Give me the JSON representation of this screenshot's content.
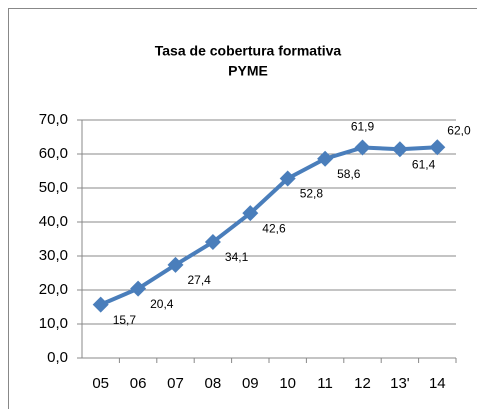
{
  "chart_data": {
    "type": "line",
    "title": "Tasa de cobertura formativa",
    "subtitle": "PYME",
    "categories": [
      "05",
      "06",
      "07",
      "08",
      "09",
      "10",
      "11",
      "12",
      "13'",
      "14"
    ],
    "series": [
      {
        "name": "Tasa de cobertura formativa PYME",
        "color": "#4a7ebb",
        "values": [
          15.7,
          20.4,
          27.4,
          34.1,
          42.6,
          52.8,
          58.6,
          61.9,
          61.4,
          62.0
        ],
        "value_labels": [
          "15,7",
          "20,4",
          "27,4",
          "34,1",
          "42,6",
          "52,8",
          "58,6",
          "61,9",
          "61,4",
          "62,0"
        ]
      }
    ],
    "ylim": [
      0,
      70
    ],
    "yticks": [
      {
        "value": 0,
        "label": "0,0"
      },
      {
        "value": 10,
        "label": "10,0"
      },
      {
        "value": 20,
        "label": "20,0"
      },
      {
        "value": 30,
        "label": "30,0"
      },
      {
        "value": 40,
        "label": "40,0"
      },
      {
        "value": 50,
        "label": "50,0"
      },
      {
        "value": 60,
        "label": "60,0"
      },
      {
        "value": 70,
        "label": "70,0"
      }
    ],
    "grid": true
  }
}
